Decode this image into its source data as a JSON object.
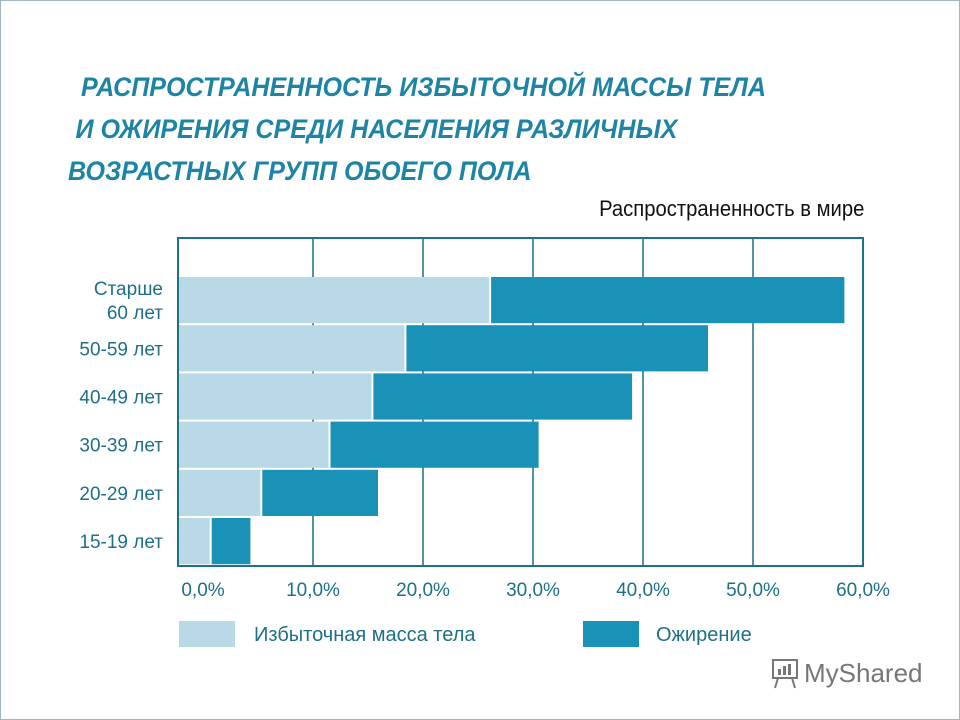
{
  "title_lines": [
    "РАСПРОСТРАНЕННОСТЬ ИЗБЫТОЧНОЙ МАССЫ ТЕЛА",
    "И ОЖИРЕНИЯ СРЕДИ НАСЕЛЕНИЯ РАЗЛИЧНЫХ",
    "ВОЗРАСТНЫХ ГРУПП ОБОЕГО ПОЛА"
  ],
  "watermark": "MyShared",
  "chart_data": {
    "type": "bar",
    "orientation": "horizontal",
    "stacked": true,
    "title": "РАСПРОСТРАНЕННОСТЬ ИЗБЫТОЧНОЙ МАССЫ ТЕЛА И ОЖИРЕНИЯ СРЕДИ НАСЕЛЕНИЯ РАЗЛИЧНЫХ ВОЗРАСТНЫХ ГРУПП ОБОЕГО ПОЛА",
    "subtitle": "Распространенность в мире",
    "categories": [
      [
        "Старше",
        "60 лет"
      ],
      [
        "50-59 лет"
      ],
      [
        "40-49 лет"
      ],
      [
        "30-39 лет"
      ],
      [
        "20-29 лет"
      ],
      [
        "15-19 лет"
      ]
    ],
    "series": [
      {
        "name": "Избыточная масса тела",
        "color": "#b9d9e6",
        "values": [
          26.1,
          18.4,
          15.4,
          11.5,
          5.3,
          0.7
        ]
      },
      {
        "name": "Ожирение",
        "color": "#1a92b8",
        "values": [
          32.3,
          27.6,
          23.7,
          19.1,
          10.7,
          3.7
        ]
      }
    ],
    "xlim": [
      0,
      60
    ],
    "xticks": [
      "0,0%",
      "10,0%",
      "20,0%",
      "30,0%",
      "40,0%",
      "50,0%",
      "60,0%"
    ],
    "xlabel": "",
    "ylabel": "",
    "grid": "vertical",
    "legend": "bottom"
  }
}
